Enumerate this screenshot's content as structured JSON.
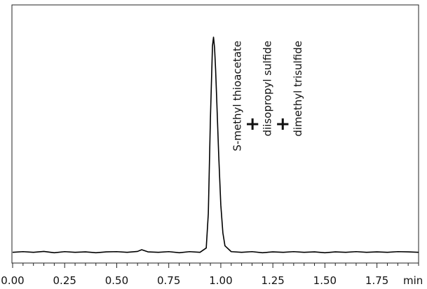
{
  "chart_data": {
    "type": "line",
    "title": "",
    "xlabel": "min",
    "ylabel": "",
    "xlim": [
      0.0,
      1.95
    ],
    "ylim": [
      -0.05,
      1.15
    ],
    "grid": false,
    "x_ticks_major": [
      0.0,
      0.25,
      0.5,
      0.75,
      1.0,
      1.25,
      1.5,
      1.75
    ],
    "x_tick_labels": [
      "0.00",
      "0.25",
      "0.50",
      "0.75",
      "1.00",
      "1.25",
      "1.50",
      "1.75"
    ],
    "x_minor_step": 0.05,
    "series": [
      {
        "x": [
          0.0,
          0.05,
          0.1,
          0.15,
          0.2,
          0.25,
          0.3,
          0.35,
          0.4,
          0.45,
          0.5,
          0.55,
          0.6,
          0.62,
          0.65,
          0.7,
          0.75,
          0.8,
          0.85,
          0.9,
          0.93,
          0.94,
          0.95,
          0.96,
          0.965,
          0.97,
          0.975,
          0.98,
          0.99,
          1.0,
          1.01,
          1.02,
          1.05,
          1.1,
          1.15,
          1.2,
          1.25,
          1.3,
          1.35,
          1.4,
          1.45,
          1.5,
          1.55,
          1.6,
          1.65,
          1.7,
          1.75,
          1.8,
          1.85,
          1.9,
          1.95
        ],
        "values": [
          0.0,
          0.003,
          0.0,
          0.004,
          -0.002,
          0.003,
          0.0,
          0.002,
          -0.002,
          0.002,
          0.003,
          0.0,
          0.004,
          0.012,
          0.002,
          0.0,
          0.003,
          -0.002,
          0.003,
          0.0,
          0.02,
          0.18,
          0.62,
          0.96,
          1.0,
          0.95,
          0.85,
          0.72,
          0.45,
          0.22,
          0.09,
          0.03,
          0.003,
          0.0,
          0.003,
          -0.002,
          0.002,
          0.0,
          0.003,
          0.0,
          0.002,
          -0.002,
          0.002,
          0.0,
          0.003,
          0.0,
          0.002,
          0.0,
          0.003,
          0.002,
          0.0
        ]
      }
    ],
    "annotations": [
      {
        "text": "S-methyl thioacetate",
        "x": 1.08
      },
      {
        "text": "diisopropyl sulfide",
        "x": 1.225
      },
      {
        "text": "dimethyl trisulfide",
        "x": 1.37
      }
    ],
    "join_symbol": "+"
  }
}
